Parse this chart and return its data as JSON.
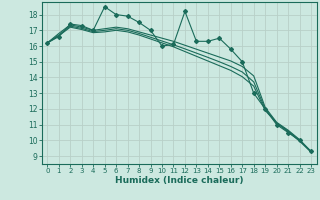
{
  "title": "",
  "xlabel": "Humidex (Indice chaleur)",
  "ylabel": "",
  "x_ticks": [
    0,
    1,
    2,
    3,
    4,
    5,
    6,
    7,
    8,
    9,
    10,
    11,
    12,
    13,
    14,
    15,
    16,
    17,
    18,
    19,
    20,
    21,
    22,
    23
  ],
  "y_ticks": [
    9,
    10,
    11,
    12,
    13,
    14,
    15,
    16,
    17,
    18
  ],
  "xlim": [
    -0.5,
    23.5
  ],
  "ylim": [
    8.5,
    18.8
  ],
  "bg_color": "#cce8e0",
  "grid_color": "#b8d0c8",
  "line_color": "#1a6b5a",
  "curve1": [
    16.2,
    16.6,
    17.4,
    17.3,
    17.0,
    18.5,
    18.0,
    17.9,
    17.5,
    17.0,
    16.0,
    16.1,
    18.2,
    16.3,
    16.3,
    16.5,
    15.8,
    15.0,
    13.0,
    12.0,
    11.0,
    10.5,
    10.0,
    9.3
  ],
  "curve2": [
    16.2,
    16.8,
    17.35,
    17.2,
    17.0,
    17.1,
    17.2,
    17.1,
    16.9,
    16.7,
    16.5,
    16.3,
    16.05,
    15.8,
    15.55,
    15.3,
    15.05,
    14.7,
    14.1,
    12.1,
    11.15,
    10.65,
    10.05,
    9.3
  ],
  "curve3": [
    16.2,
    16.65,
    17.2,
    17.05,
    16.85,
    16.9,
    17.0,
    16.9,
    16.7,
    16.45,
    16.2,
    15.95,
    15.65,
    15.35,
    15.05,
    14.75,
    14.45,
    14.05,
    13.45,
    11.9,
    11.1,
    10.55,
    9.95,
    9.25
  ],
  "curve4": [
    16.2,
    16.7,
    17.27,
    17.12,
    16.92,
    17.0,
    17.1,
    17.0,
    16.8,
    16.56,
    16.32,
    16.08,
    15.82,
    15.55,
    15.28,
    15.0,
    14.7,
    14.35,
    13.72,
    12.0,
    11.1,
    10.6,
    10.0,
    9.27
  ]
}
